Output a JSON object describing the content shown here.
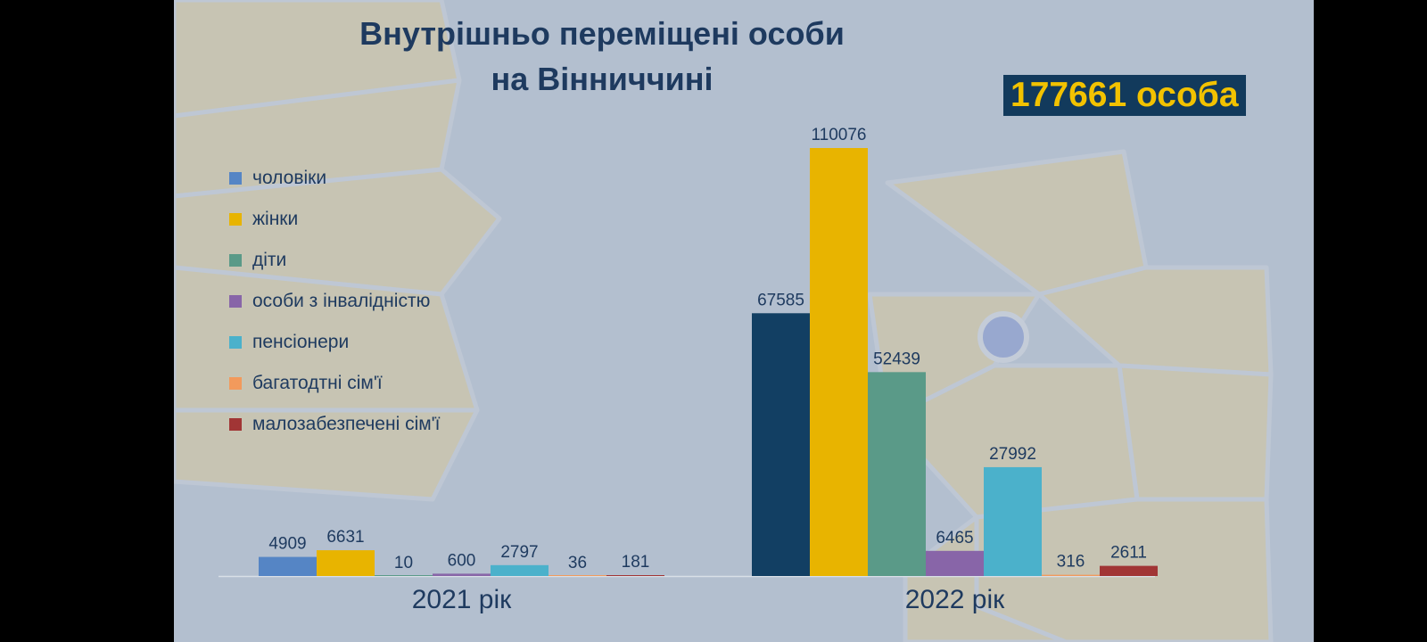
{
  "title_line1": "Внутрішньо переміщені особи",
  "title_line2": "на Вінниччині",
  "total": "177661 особа",
  "colors": {
    "background": "#b3bfcf",
    "decor": "#d3c7a5",
    "title": "#1e3a5f",
    "badge_bg": "#123a5c",
    "badge_text": "#f2c200"
  },
  "chart_data": {
    "type": "bar",
    "categories": [
      "2021 рік",
      "2022 рік"
    ],
    "legend_position": "left",
    "grid": false,
    "series": [
      {
        "name": "чоловіки",
        "values": [
          4909,
          67585
        ],
        "colors": [
          "#5585c5",
          "#123f63"
        ]
      },
      {
        "name": "жінки",
        "values": [
          6631,
          110076
        ],
        "colors": [
          "#e8b400",
          "#e8b400"
        ]
      },
      {
        "name": "діти",
        "values": [
          10,
          52439
        ],
        "colors": [
          "#5a9a88",
          "#5a9a88"
        ]
      },
      {
        "name": "особи з інвалідністю",
        "values": [
          600,
          6465
        ],
        "colors": [
          "#8865a8",
          "#8865a8"
        ]
      },
      {
        "name": "пенсіонери",
        "values": [
          2797,
          27992
        ],
        "colors": [
          "#4bb1cb",
          "#4bb1cb"
        ]
      },
      {
        "name": "багатодтні сім'ї",
        "values": [
          36,
          316
        ],
        "colors": [
          "#f29a5c",
          "#f29a5c"
        ]
      },
      {
        "name": "малозабезпечені сім'ї",
        "values": [
          181,
          2611
        ],
        "colors": [
          "#a13535",
          "#a13535"
        ]
      }
    ]
  }
}
